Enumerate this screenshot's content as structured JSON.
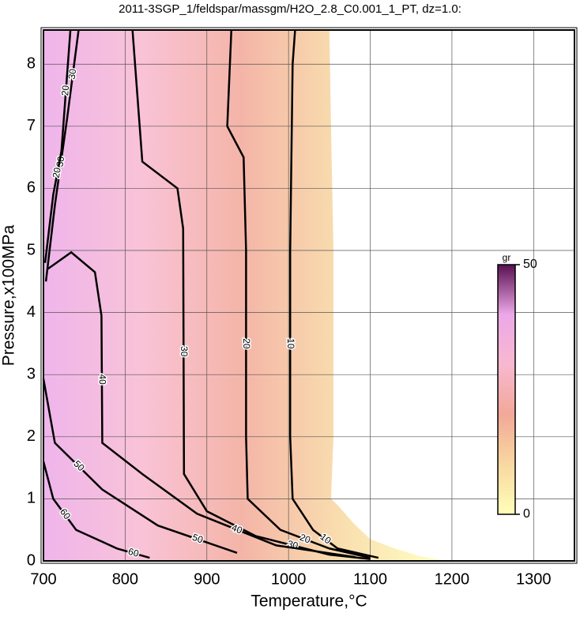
{
  "chart_data": {
    "type": "contour",
    "title": "2011-3SGP_1/feldspar/massgm/H2O_2.8_C0.001_1_PT, dz=1.0:",
    "x_label": "Temperature,°C",
    "y_label": "Pressure,x100MPa",
    "xlim": [
      700,
      1350
    ],
    "ylim": [
      0,
      8.55
    ],
    "xticks": [
      700,
      800,
      900,
      1000,
      1100,
      1200,
      1300
    ],
    "yticks": [
      0,
      1,
      2,
      3,
      4,
      5,
      6,
      7,
      8
    ],
    "grid": true,
    "field_extent": {
      "x": [
        700,
        700,
        1050,
        1052,
        1055,
        1055,
        1052,
        1060,
        1080,
        1100,
        1130,
        1160,
        1185,
        1185
      ],
      "y": [
        0,
        8.55,
        8.55,
        7,
        5,
        2,
        1,
        0.9,
        0.6,
        0.35,
        0.2,
        0.08,
        0.02,
        0
      ]
    },
    "contours": [
      {
        "level": 10,
        "x": [
          1008,
          1005,
          1003,
          1002,
          1002,
          1005,
          1030,
          1060,
          1110
        ],
        "y": [
          8.55,
          8,
          6,
          5,
          2,
          1,
          0.5,
          0.2,
          0.05
        ]
      },
      {
        "level": 20,
        "x": [
          930,
          925,
          945,
          948,
          948,
          950,
          990,
          1050,
          1100
        ],
        "y": [
          8.55,
          7,
          6.5,
          5,
          2,
          1,
          0.5,
          0.2,
          0.05
        ]
      },
      {
        "level": 30,
        "x": [
          809,
          821,
          864,
          871,
          872,
          900,
          960,
          1050,
          1100
        ],
        "y": [
          8.55,
          6.43,
          6,
          5.35,
          1.4,
          0.8,
          0.4,
          0.1,
          0.03
        ]
      },
      {
        "level": 40,
        "x": [
          705,
          734,
          763,
          771,
          772,
          821,
          888,
          985,
          1082
        ],
        "y": [
          4.7,
          4.97,
          4.65,
          3.95,
          1.9,
          1.4,
          0.76,
          0.25,
          0.06
        ]
      },
      {
        "level": 50,
        "x": [
          700,
          714,
          772,
          840,
          937
        ],
        "y": [
          2.93,
          1.9,
          1.15,
          0.57,
          0.13
        ]
      },
      {
        "level": 30,
        "x": [
          703,
          714,
          729,
          743
        ],
        "y": [
          4.5,
          5.73,
          7.13,
          8.55
        ]
      },
      {
        "level": 20,
        "x": [
          702,
          712,
          722,
          733
        ],
        "y": [
          4.8,
          5.9,
          6.6,
          8.55
        ]
      },
      {
        "level": 60,
        "x": [
          700,
          712,
          740,
          790,
          830
        ],
        "y": [
          1.6,
          1.0,
          0.5,
          0.2,
          0.05
        ]
      }
    ],
    "colorbar": {
      "label": "gr",
      "lim": [
        0,
        50
      ],
      "ticks": [
        0,
        50
      ]
    },
    "colormap": [
      "#ffffb8",
      "#f8d8a0",
      "#f2a898",
      "#f8b8d0",
      "#eca8e8",
      "#5a1050"
    ]
  }
}
